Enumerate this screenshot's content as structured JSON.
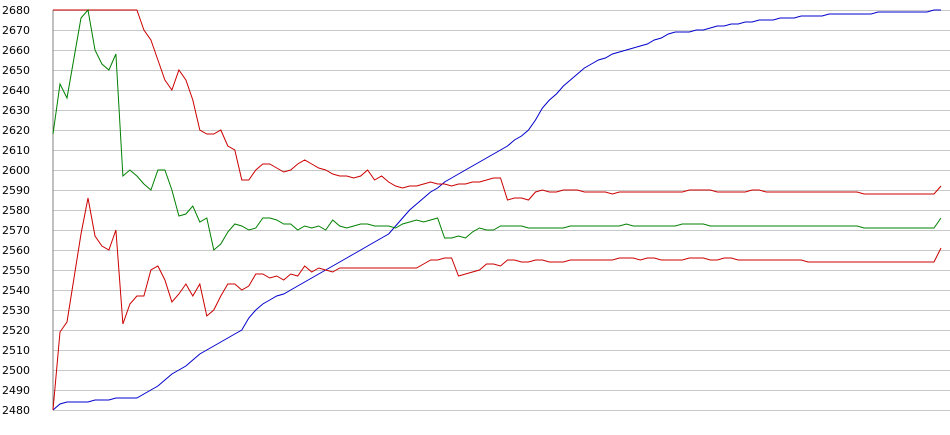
{
  "chart_data": {
    "type": "line",
    "title": "",
    "xlabel": "",
    "ylabel": "",
    "ylim": [
      2480,
      2680
    ],
    "yticks": [
      2480,
      2490,
      2500,
      2510,
      2520,
      2530,
      2540,
      2550,
      2560,
      2570,
      2580,
      2590,
      2600,
      2610,
      2620,
      2630,
      2640,
      2650,
      2660,
      2670,
      2680
    ],
    "grid": true,
    "legend": "none",
    "x": [
      0,
      1,
      2,
      3,
      4,
      5,
      6,
      7,
      8,
      9,
      10,
      11,
      12,
      13,
      14,
      15,
      16,
      17,
      18,
      19,
      20,
      21,
      22,
      23,
      24,
      25,
      26,
      27,
      28,
      29,
      30,
      31,
      32,
      33,
      34,
      35,
      36,
      37,
      38,
      39,
      40,
      41,
      42,
      43,
      44,
      45,
      46,
      47,
      48,
      49,
      50,
      51,
      52,
      53,
      54,
      55,
      56,
      57,
      58,
      59,
      60,
      61,
      62,
      63,
      64,
      65,
      66,
      67,
      68,
      69,
      70,
      71,
      72,
      73,
      74,
      75,
      76,
      77,
      78,
      79,
      80,
      81,
      82,
      83,
      84,
      85,
      86,
      87,
      88,
      89,
      90,
      91,
      92,
      93,
      94,
      95,
      96,
      97,
      98,
      99,
      100,
      101,
      102,
      103,
      104,
      105,
      106,
      107,
      108,
      109,
      110,
      111,
      112,
      113,
      114,
      115,
      116,
      117,
      118,
      119,
      120,
      121,
      122,
      123,
      124,
      125,
      126,
      127
    ],
    "series": [
      {
        "color": "#0000cc",
        "values": [
          2480,
          2483,
          2484,
          2484,
          2484,
          2484,
          2485,
          2485,
          2485,
          2486,
          2486,
          2486,
          2486,
          2488,
          2490,
          2492,
          2495,
          2498,
          2500,
          2502,
          2505,
          2508,
          2510,
          2512,
          2514,
          2516,
          2518,
          2520,
          2526,
          2530,
          2533,
          2535,
          2537,
          2538,
          2540,
          2542,
          2544,
          2546,
          2548,
          2550,
          2552,
          2554,
          2556,
          2558,
          2560,
          2562,
          2564,
          2566,
          2568,
          2572,
          2576,
          2580,
          2583,
          2586,
          2589,
          2591,
          2594,
          2596,
          2598,
          2600,
          2602,
          2604,
          2606,
          2608,
          2610,
          2612,
          2615,
          2617,
          2620,
          2625,
          2631,
          2635,
          2638,
          2642,
          2645,
          2648,
          2651,
          2653,
          2655,
          2656,
          2658,
          2659,
          2660,
          2661,
          2662,
          2663,
          2665,
          2666,
          2668,
          2669,
          2669,
          2669,
          2670,
          2670,
          2671,
          2672,
          2672,
          2673,
          2673,
          2674,
          2674,
          2675,
          2675,
          2675,
          2676,
          2676,
          2676,
          2677,
          2677,
          2677,
          2677,
          2678,
          2678,
          2678,
          2678,
          2678,
          2678,
          2678,
          2679,
          2679,
          2679,
          2679,
          2679,
          2679,
          2679,
          2679,
          2680,
          2680
        ]
      },
      {
        "color": "#cc0000",
        "values": [
          2680,
          2680,
          2680,
          2680,
          2680,
          2680,
          2680,
          2680,
          2680,
          2680,
          2680,
          2680,
          2680,
          2670,
          2665,
          2655,
          2645,
          2640,
          2650,
          2645,
          2635,
          2620,
          2618,
          2618,
          2620,
          2612,
          2610,
          2595,
          2595,
          2600,
          2603,
          2603,
          2601,
          2599,
          2600,
          2603,
          2605,
          2603,
          2601,
          2600,
          2598,
          2597,
          2597,
          2596,
          2597,
          2600,
          2595,
          2597,
          2594,
          2592,
          2591,
          2592,
          2592,
          2593,
          2594,
          2593,
          2593,
          2592,
          2593,
          2593,
          2594,
          2594,
          2595,
          2596,
          2596,
          2585,
          2586,
          2586,
          2585,
          2589,
          2590,
          2589,
          2589,
          2590,
          2590,
          2590,
          2589,
          2589,
          2589,
          2589,
          2588,
          2589,
          2589,
          2589,
          2589,
          2589,
          2589,
          2589,
          2589,
          2589,
          2589,
          2590,
          2590,
          2590,
          2590,
          2589,
          2589,
          2589,
          2589,
          2589,
          2590,
          2590,
          2589,
          2589,
          2589,
          2589,
          2589,
          2589,
          2589,
          2589,
          2589,
          2589,
          2589,
          2589,
          2589,
          2589,
          2588,
          2588,
          2588,
          2588,
          2588,
          2588,
          2588,
          2588,
          2588,
          2588,
          2588,
          2592
        ]
      },
      {
        "color": "#008000",
        "values": [
          2618,
          2643,
          2636,
          2656,
          2676,
          2680,
          2660,
          2653,
          2650,
          2658,
          2597,
          2600,
          2597,
          2593,
          2590,
          2600,
          2600,
          2590,
          2577,
          2578,
          2582,
          2574,
          2576,
          2560,
          2563,
          2569,
          2573,
          2572,
          2570,
          2571,
          2576,
          2576,
          2575,
          2573,
          2573,
          2570,
          2572,
          2571,
          2572,
          2570,
          2575,
          2572,
          2571,
          2572,
          2573,
          2573,
          2572,
          2572,
          2572,
          2571,
          2573,
          2574,
          2575,
          2574,
          2575,
          2576,
          2566,
          2566,
          2567,
          2566,
          2569,
          2571,
          2570,
          2570,
          2572,
          2572,
          2572,
          2572,
          2571,
          2571,
          2571,
          2571,
          2571,
          2571,
          2572,
          2572,
          2572,
          2572,
          2572,
          2572,
          2572,
          2572,
          2573,
          2572,
          2572,
          2572,
          2572,
          2572,
          2572,
          2572,
          2573,
          2573,
          2573,
          2573,
          2572,
          2572,
          2572,
          2572,
          2572,
          2572,
          2572,
          2572,
          2572,
          2572,
          2572,
          2572,
          2572,
          2572,
          2572,
          2572,
          2572,
          2572,
          2572,
          2572,
          2572,
          2572,
          2571,
          2571,
          2571,
          2571,
          2571,
          2571,
          2571,
          2571,
          2571,
          2571,
          2571,
          2576
        ]
      },
      {
        "color": "#cc0000",
        "values": [
          2480,
          2519,
          2524,
          2546,
          2568,
          2586,
          2567,
          2562,
          2560,
          2570,
          2523,
          2533,
          2537,
          2537,
          2550,
          2552,
          2545,
          2534,
          2538,
          2543,
          2537,
          2543,
          2527,
          2530,
          2537,
          2543,
          2543,
          2540,
          2542,
          2548,
          2548,
          2546,
          2547,
          2545,
          2548,
          2547,
          2552,
          2549,
          2551,
          2550,
          2549,
          2551,
          2551,
          2551,
          2551,
          2551,
          2551,
          2551,
          2551,
          2551,
          2551,
          2551,
          2551,
          2553,
          2555,
          2555,
          2556,
          2556,
          2547,
          2548,
          2549,
          2550,
          2553,
          2553,
          2552,
          2555,
          2555,
          2554,
          2554,
          2555,
          2555,
          2554,
          2554,
          2554,
          2555,
          2555,
          2555,
          2555,
          2555,
          2555,
          2555,
          2556,
          2556,
          2556,
          2555,
          2556,
          2556,
          2555,
          2555,
          2555,
          2555,
          2556,
          2556,
          2556,
          2555,
          2555,
          2556,
          2556,
          2555,
          2555,
          2555,
          2555,
          2555,
          2555,
          2555,
          2555,
          2555,
          2555,
          2554,
          2554,
          2554,
          2554,
          2554,
          2554,
          2554,
          2554,
          2554,
          2554,
          2554,
          2554,
          2554,
          2554,
          2554,
          2554,
          2554,
          2554,
          2554,
          2561
        ]
      }
    ]
  }
}
